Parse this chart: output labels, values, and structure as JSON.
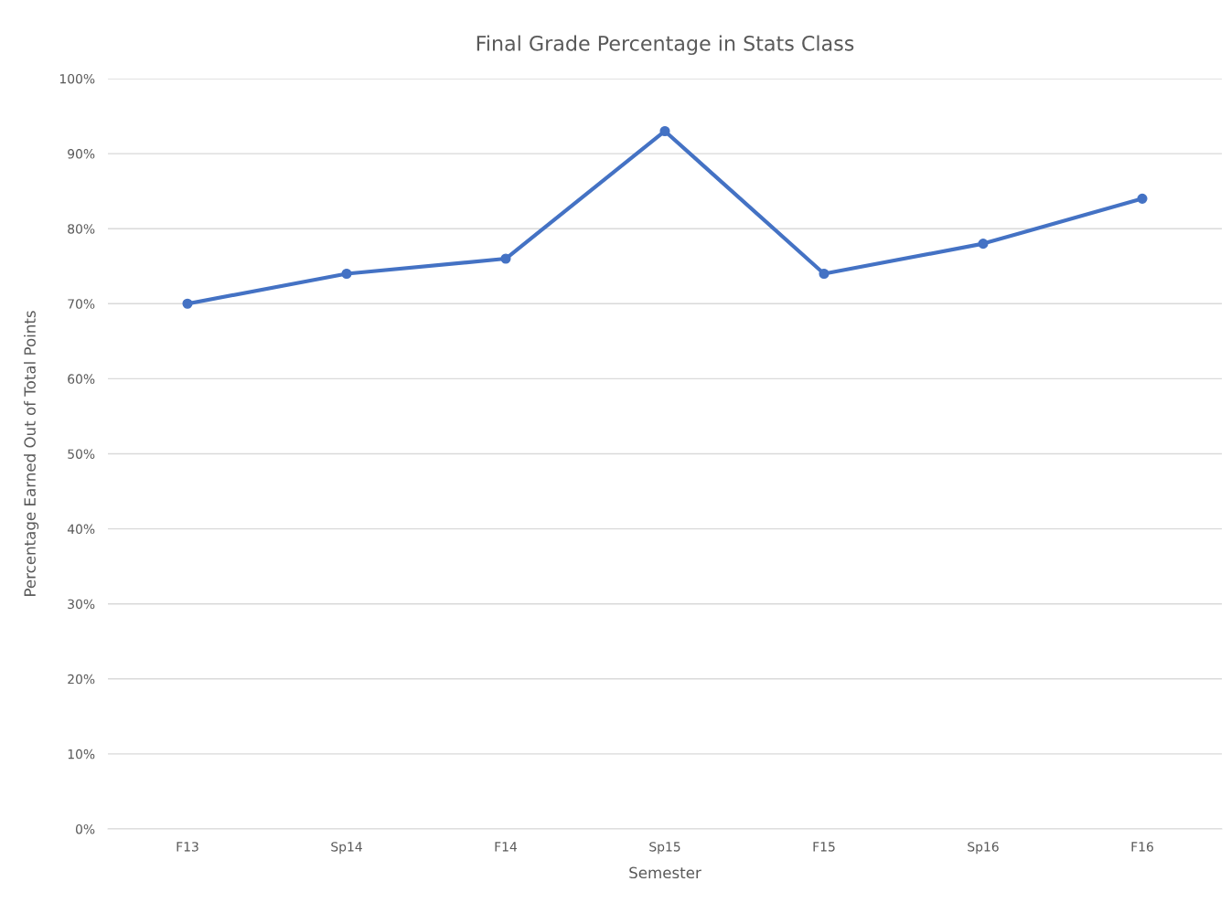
{
  "chart_data": {
    "type": "line",
    "title": "Final Grade Percentage in Stats Class",
    "xlabel": "Semester",
    "ylabel": "Percentage Earned Out of Total Points",
    "categories": [
      "F13",
      "Sp14",
      "F14",
      "Sp15",
      "F15",
      "Sp16",
      "F16"
    ],
    "series": [
      {
        "color": "#4472c4",
        "values": [
          70,
          74,
          76,
          93,
          74,
          78,
          84
        ]
      }
    ],
    "ylim": [
      0,
      100
    ],
    "yticks": [
      {
        "value": 0,
        "label": "0%"
      },
      {
        "value": 10,
        "label": "10%"
      },
      {
        "value": 20,
        "label": "20%"
      },
      {
        "value": 30,
        "label": "30%"
      },
      {
        "value": 40,
        "label": "40%"
      },
      {
        "value": 50,
        "label": "50%"
      },
      {
        "value": 60,
        "label": "60%"
      },
      {
        "value": 70,
        "label": "70%"
      },
      {
        "value": 80,
        "label": "80%"
      },
      {
        "value": 90,
        "label": "90%"
      },
      {
        "value": 100,
        "label": "100%"
      }
    ],
    "grid": "y",
    "marker": "circle",
    "line_style": "solid"
  }
}
